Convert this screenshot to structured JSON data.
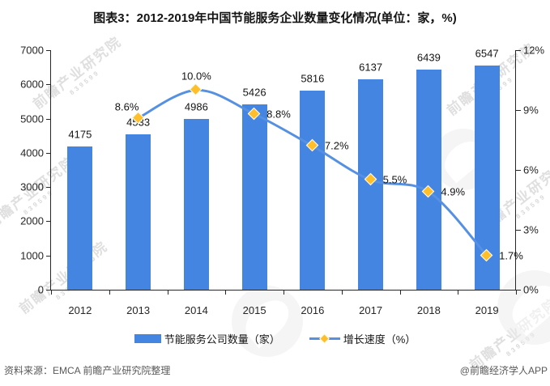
{
  "title": "图表3：2012-2019年中国节能服务企业数量变化情况(单位：家，%)",
  "chart_data": {
    "type": "bar",
    "title": "图表3：2012-2019年中国节能服务企业数量变化情况(单位：家，%)",
    "categories": [
      "2012",
      "2013",
      "2014",
      "2015",
      "2016",
      "2017",
      "2018",
      "2019"
    ],
    "series": [
      {
        "name": "节能服务公司数量（家）",
        "type": "bar",
        "axis": "left",
        "values": [
          4175,
          4533,
          4986,
          5426,
          5816,
          6137,
          6439,
          6547
        ]
      },
      {
        "name": "增长速度（%）",
        "type": "line",
        "axis": "right",
        "values": [
          null,
          8.6,
          10.0,
          8.8,
          7.2,
          5.5,
          4.9,
          1.7
        ],
        "point_labels": [
          null,
          "8.6%",
          "10.0%",
          "8.8%",
          "7.2%",
          "5.5%",
          "4.9%",
          "1.7%"
        ],
        "label_placements": [
          null,
          "above-left",
          "above",
          "right",
          "right",
          "right",
          "right",
          "right"
        ]
      }
    ],
    "left_axis": {
      "min": 0,
      "max": 7000,
      "step": 1000,
      "tick_labels": [
        "0",
        "1000",
        "2000",
        "3000",
        "4000",
        "5000",
        "6000",
        "7000"
      ]
    },
    "right_axis": {
      "min": 0,
      "max": 12,
      "step": 3,
      "tick_labels": [
        "0%",
        "3%",
        "6%",
        "9%",
        "12%"
      ]
    },
    "grid": false,
    "legend_position": "bottom"
  },
  "legend": {
    "items": [
      {
        "label": "节能服务公司数量（家）",
        "swatch": "bar"
      },
      {
        "label": "增长速度（%）",
        "swatch": "line-diamond"
      }
    ]
  },
  "footer": {
    "source": "资料来源：EMCA 前瞻产业研究院整理",
    "credit": "@前瞻经济学人APP"
  },
  "watermark": {
    "text": "前瞻产业研究院",
    "subtext": "839599"
  },
  "colors": {
    "bar": "#4485E2",
    "line": "#5590E2",
    "marker": "#FFBF2A",
    "axis": "#262626",
    "label": "#141414",
    "footer_text": "#595959"
  }
}
